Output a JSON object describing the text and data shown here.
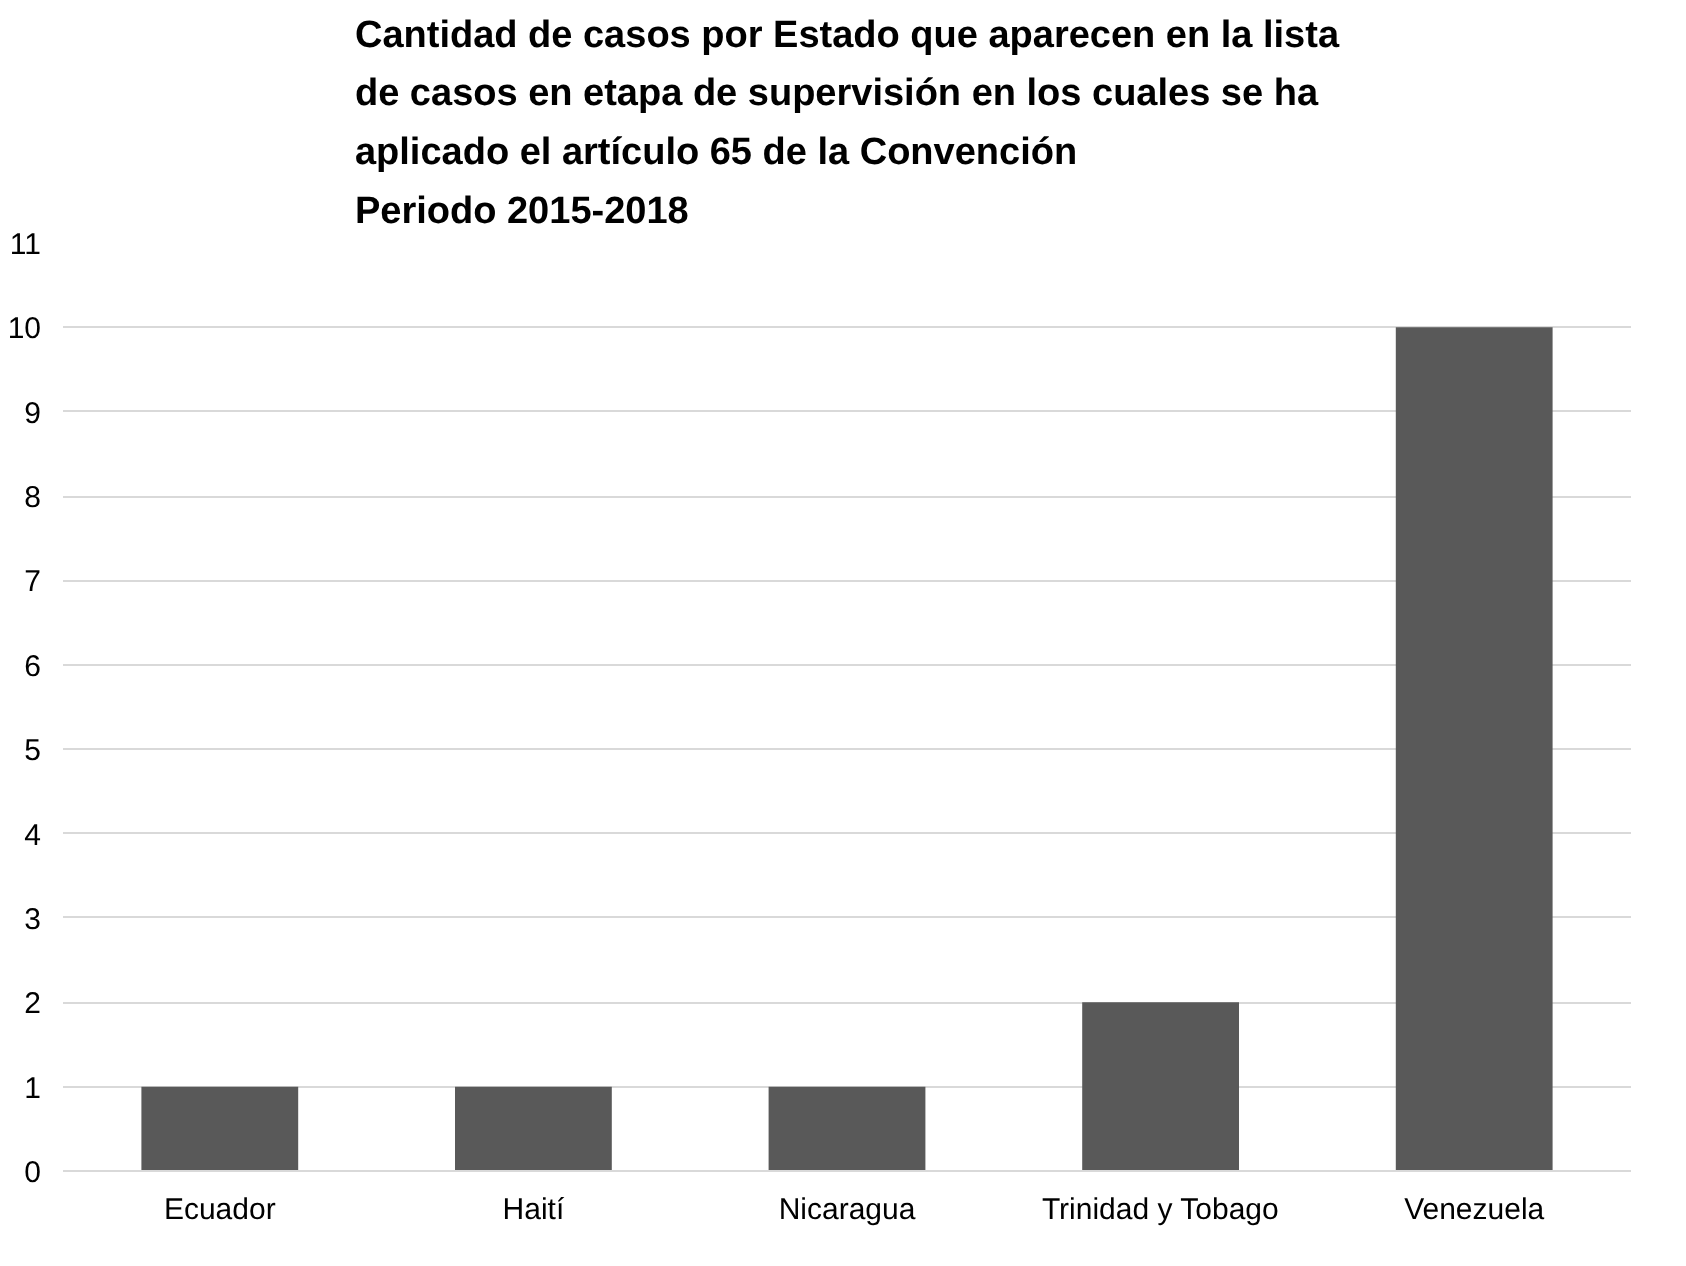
{
  "chart_data": {
    "type": "bar",
    "title": "Cantidad de casos por Estado que aparecen en la lista\nde casos en etapa de supervisión en los cuales se ha\naplicado el artículo 65 de la Convención\nPeriodo 2015-2018",
    "categories": [
      "Ecuador",
      "Haití",
      "Nicaragua",
      "Trinidad y Tobago",
      "Venezuela"
    ],
    "values": [
      1,
      1,
      1,
      2,
      10
    ],
    "color": "#595959",
    "ylim": [
      0,
      11
    ],
    "yticks": [
      0,
      1,
      2,
      3,
      4,
      5,
      6,
      7,
      8,
      9,
      10,
      11
    ],
    "grid": "y"
  }
}
